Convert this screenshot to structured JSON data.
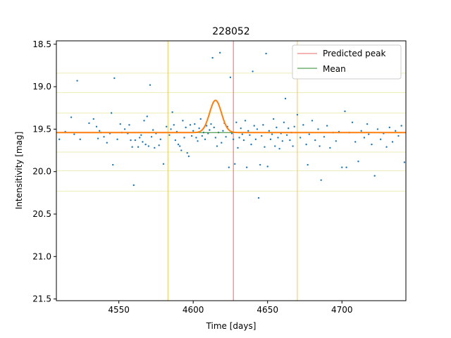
{
  "chart_data": {
    "type": "scatter",
    "title": "228052",
    "xlabel": "Time [days]",
    "ylabel": "Intensitivity [mag]",
    "xlim": [
      4508,
      4743
    ],
    "ylim": [
      21.52,
      18.46
    ],
    "y_inverted": true,
    "xticks": [
      4550,
      4600,
      4650,
      4700
    ],
    "xtick_labels": [
      "4550",
      "4600",
      "4650",
      "4700"
    ],
    "yticks": [
      18.5,
      19.0,
      19.5,
      20.0,
      20.5,
      21.0,
      21.5
    ],
    "ytick_labels": [
      "18.5",
      "19.0",
      "19.5",
      "20.0",
      "20.5",
      "21.0",
      "21.5"
    ],
    "legend": {
      "placement": "top-right",
      "entries": [
        {
          "label": "Predicted peak",
          "color": "#e8686a"
        },
        {
          "label": "Mean",
          "color": "#2a8a2a"
        }
      ]
    },
    "colors": {
      "points": "#1f77b4",
      "model": "#ff7f0e",
      "peak_line": "#e8686a",
      "mean_line": "#2a8a2a",
      "window_lines": "#f0c850",
      "band_lines": "#eeeeb8"
    },
    "predicted_peak_x": 4627,
    "window_x": [
      4583,
      4670
    ],
    "mean_y": 19.54,
    "band_y": [
      18.84,
      19.07,
      19.31,
      19.77,
      19.99,
      20.23
    ],
    "model_curve": {
      "baseline": 19.54,
      "peak_x": 4615,
      "peak_y": 19.16,
      "sigma": 4
    },
    "points": [
      [
        4510,
        19.62
      ],
      [
        4514,
        19.53
      ],
      [
        4518,
        19.36
      ],
      [
        4520,
        19.56
      ],
      [
        4522,
        18.93
      ],
      [
        4524,
        19.62
      ],
      [
        4530,
        19.43
      ],
      [
        4533,
        19.38
      ],
      [
        4535,
        19.47
      ],
      [
        4536,
        19.61
      ],
      [
        4537,
        19.52
      ],
      [
        4538,
        19.54
      ],
      [
        4540,
        19.59
      ],
      [
        4542,
        19.66
      ],
      [
        4544,
        19.55
      ],
      [
        4545,
        19.31
      ],
      [
        4546,
        19.92
      ],
      [
        4547,
        18.9
      ],
      [
        4549,
        19.62
      ],
      [
        4551,
        19.44
      ],
      [
        4552,
        19.54
      ],
      [
        4554,
        19.5
      ],
      [
        4556,
        19.55
      ],
      [
        4557,
        19.45
      ],
      [
        4558,
        19.63
      ],
      [
        4559,
        19.71
      ],
      [
        4560,
        20.16
      ],
      [
        4561,
        19.63
      ],
      [
        4563,
        19.71
      ],
      [
        4564,
        19.6
      ],
      [
        4565,
        19.57
      ],
      [
        4566,
        19.65
      ],
      [
        4567,
        19.4
      ],
      [
        4568,
        19.68
      ],
      [
        4569,
        19.35
      ],
      [
        4570,
        19.7
      ],
      [
        4571,
        18.98
      ],
      [
        4572,
        19.59
      ],
      [
        4573,
        19.51
      ],
      [
        4574,
        19.72
      ],
      [
        4575,
        19.55
      ],
      [
        4577,
        19.69
      ],
      [
        4578,
        19.62
      ],
      [
        4580,
        19.91
      ],
      [
        4582,
        19.47
      ],
      [
        4584,
        19.57
      ],
      [
        4585,
        19.5
      ],
      [
        4586,
        19.3
      ],
      [
        4587,
        19.45
      ],
      [
        4588,
        19.63
      ],
      [
        4589,
        19.53
      ],
      [
        4590,
        19.68
      ],
      [
        4591,
        19.7
      ],
      [
        4592,
        19.75
      ],
      [
        4593,
        19.4
      ],
      [
        4594,
        19.6
      ],
      [
        4595,
        19.48
      ],
      [
        4596,
        19.78
      ],
      [
        4597,
        19.82
      ],
      [
        4598,
        19.45
      ],
      [
        4599,
        19.58
      ],
      [
        4600,
        19.52
      ],
      [
        4601,
        19.44
      ],
      [
        4602,
        19.6
      ],
      [
        4603,
        19.64
      ],
      [
        4604,
        19.49
      ],
      [
        4605,
        19.38
      ],
      [
        4606,
        19.58
      ],
      [
        4607,
        19.54
      ],
      [
        4608,
        19.62
      ],
      [
        4609,
        19.46
      ],
      [
        4610,
        19.55
      ],
      [
        4611,
        19.51
      ],
      [
        4612,
        19.44
      ],
      [
        4613,
        18.66
      ],
      [
        4614,
        19.48
      ],
      [
        4615,
        19.6
      ],
      [
        4616,
        19.7
      ],
      [
        4617,
        19.54
      ],
      [
        4618,
        18.6
      ],
      [
        4619,
        19.66
      ],
      [
        4620,
        19.52
      ],
      [
        4621,
        19.43
      ],
      [
        4622,
        19.59
      ],
      [
        4623,
        19.47
      ],
      [
        4624,
        19.95
      ],
      [
        4625,
        18.89
      ],
      [
        4626,
        19.55
      ],
      [
        4627,
        19.62
      ],
      [
        4628,
        19.91
      ],
      [
        4629,
        19.42
      ],
      [
        4630,
        19.72
      ],
      [
        4631,
        19.6
      ],
      [
        4632,
        19.49
      ],
      [
        4633,
        19.56
      ],
      [
        4634,
        19.63
      ],
      [
        4635,
        19.4
      ],
      [
        4636,
        19.95
      ],
      [
        4637,
        19.52
      ],
      [
        4638,
        19.57
      ],
      [
        4639,
        19.68
      ],
      [
        4640,
        18.82
      ],
      [
        4641,
        19.46
      ],
      [
        4642,
        19.62
      ],
      [
        4643,
        19.5
      ],
      [
        4644,
        20.31
      ],
      [
        4645,
        19.92
      ],
      [
        4646,
        19.58
      ],
      [
        4647,
        19.45
      ],
      [
        4648,
        19.71
      ],
      [
        4649,
        18.61
      ],
      [
        4650,
        19.94
      ],
      [
        4651,
        19.52
      ],
      [
        4652,
        19.62
      ],
      [
        4653,
        19.56
      ],
      [
        4654,
        19.38
      ],
      [
        4655,
        19.7
      ],
      [
        4656,
        19.48
      ],
      [
        4657,
        19.6
      ],
      [
        4658,
        19.73
      ],
      [
        4659,
        19.55
      ],
      [
        4660,
        19.64
      ],
      [
        4661,
        19.42
      ],
      [
        4662,
        19.14
      ],
      [
        4663,
        19.57
      ],
      [
        4664,
        19.49
      ],
      [
        4665,
        19.63
      ],
      [
        4666,
        19.54
      ],
      [
        4667,
        19.7
      ],
      [
        4668,
        19.47
      ],
      [
        4670,
        19.33
      ],
      [
        4672,
        19.6
      ],
      [
        4674,
        19.45
      ],
      [
        4676,
        19.68
      ],
      [
        4677,
        19.92
      ],
      [
        4678,
        19.56
      ],
      [
        4680,
        19.4
      ],
      [
        4682,
        19.63
      ],
      [
        4684,
        19.5
      ],
      [
        4685,
        19.7
      ],
      [
        4686,
        20.1
      ],
      [
        4688,
        19.59
      ],
      [
        4690,
        19.46
      ],
      [
        4692,
        19.72
      ],
      [
        4694,
        19.54
      ],
      [
        4696,
        19.64
      ],
      [
        4698,
        19.53
      ],
      [
        4700,
        19.95
      ],
      [
        4702,
        19.29
      ],
      [
        4703,
        19.95
      ],
      [
        4705,
        19.54
      ],
      [
        4707,
        19.42
      ],
      [
        4709,
        19.65
      ],
      [
        4711,
        19.88
      ],
      [
        4713,
        19.52
      ],
      [
        4715,
        19.6
      ],
      [
        4717,
        19.44
      ],
      [
        4718,
        19.56
      ],
      [
        4720,
        19.68
      ],
      [
        4722,
        20.05
      ],
      [
        4724,
        19.5
      ],
      [
        4726,
        19.62
      ],
      [
        4728,
        19.55
      ],
      [
        4730,
        19.71
      ],
      [
        4732,
        19.48
      ],
      [
        4734,
        19.65
      ],
      [
        4736,
        19.52
      ],
      [
        4738,
        19.58
      ],
      [
        4740,
        19.46
      ],
      [
        4742,
        19.89
      ]
    ]
  }
}
